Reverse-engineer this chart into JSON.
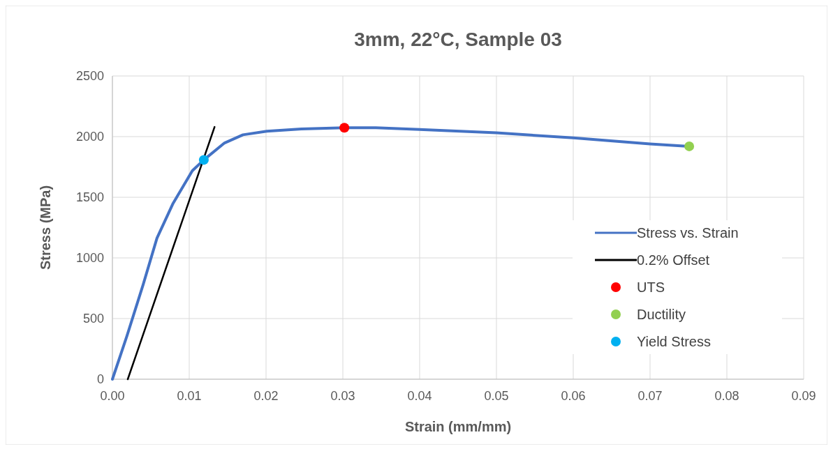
{
  "chart_data": {
    "type": "line",
    "title": "3mm, 22°C, Sample 03",
    "xlabel": "Strain (mm/mm)",
    "ylabel": "Stress (MPa)",
    "xlim": [
      0,
      0.09
    ],
    "xticks": [
      {
        "value": 0,
        "label": "0.00"
      },
      0.01,
      0.02,
      0.03,
      0.04,
      0.05,
      0.06,
      0.07,
      0.08,
      0.09
    ],
    "ylim": [
      0,
      2500
    ],
    "yticks": [
      0,
      500,
      1000,
      1500,
      2000,
      2500
    ],
    "grid": true,
    "legend": "right",
    "series": [
      {
        "name": "Stress vs. Strain",
        "color": "#4472c4",
        "x": [
          0,
          0.0019,
          0.004,
          0.0058,
          0.0079,
          0.0104,
          0.0119,
          0.0146,
          0.017,
          0.0201,
          0.0246,
          0.0302,
          0.0343,
          0.04,
          0.05,
          0.06,
          0.07,
          0.0751
        ],
        "values": [
          0,
          358,
          780,
          1163,
          1450,
          1718,
          1808,
          1948,
          2015,
          2044,
          2063,
          2073,
          2073,
          2059,
          2031,
          1990,
          1939,
          1920
        ]
      },
      {
        "name": "0.2% Offset",
        "color": "#000000",
        "x": [
          0.002,
          0.0133
        ],
        "values": [
          0,
          2080
        ]
      },
      {
        "name": "UTS",
        "type": "scatter",
        "color": "#ff0000",
        "x": [
          0.0302
        ],
        "values": [
          2073
        ]
      },
      {
        "name": "Ductility",
        "type": "scatter",
        "color": "#92d050",
        "x": [
          0.0751
        ],
        "values": [
          1920
        ]
      },
      {
        "name": "Yield Stress",
        "type": "scatter",
        "color": "#00b0f0",
        "x": [
          0.0119
        ],
        "values": [
          1808
        ]
      }
    ]
  }
}
